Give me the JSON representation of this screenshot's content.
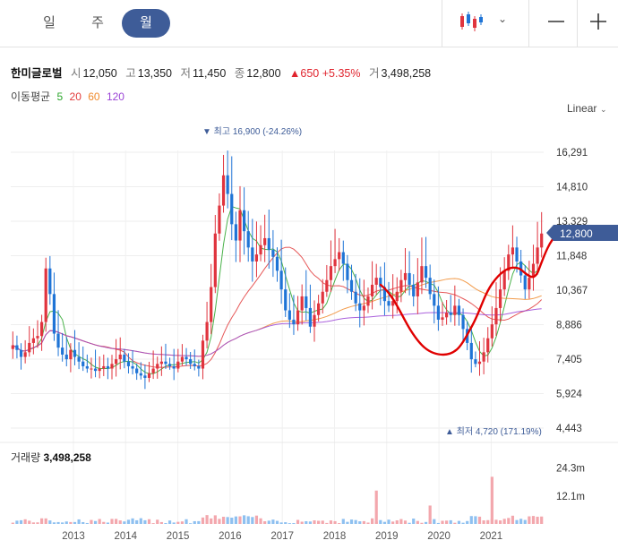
{
  "tabs": [
    {
      "label": "일",
      "active": false
    },
    {
      "label": "주",
      "active": false
    },
    {
      "label": "월",
      "active": true
    }
  ],
  "quote": {
    "name": "한미글로벌",
    "open_label": "시",
    "open": "12,050",
    "high_label": "고",
    "high": "13,350",
    "low_label": "저",
    "low": "11,450",
    "close_label": "종",
    "close": "12,800",
    "change": "▲650",
    "change_pct": "+5.35%",
    "volume_label": "거",
    "volume": "3,498,258"
  },
  "moving_avg": {
    "label": "이동평균",
    "periods": [
      {
        "label": "5",
        "color": "#2aa52a"
      },
      {
        "label": "20",
        "color": "#e23b3b"
      },
      {
        "label": "60",
        "color": "#f08a2c"
      },
      {
        "label": "120",
        "color": "#9b45d6"
      }
    ]
  },
  "scale_label": "Linear",
  "annotations": {
    "max_label": "▼ 최고 16,900 (-24.26%)",
    "min_label": "▲ 최저 4,720 (171.19%)"
  },
  "current_price_tag": "12,800",
  "volume_panel": {
    "label": "거래량",
    "value": "3,498,258"
  },
  "colors": {
    "up": "#e0343e",
    "down": "#1f74d6",
    "accent": "#3e5c98",
    "trend": "#e00000"
  },
  "chart_data": {
    "type": "candlestick",
    "y_ticks": [
      "16,291",
      "14,810",
      "13,329",
      "11,848",
      "10,367",
      "8,886",
      "7,405",
      "5,924",
      "4,443"
    ],
    "ylim": [
      4443,
      16291
    ],
    "x_ticks": [
      "2013",
      "2014",
      "2015",
      "2016",
      "2017",
      "2018",
      "2019",
      "2020",
      "2021"
    ],
    "volume_ticks": [
      "24.3m",
      "12.1m"
    ],
    "volume_max": 24.3,
    "price_path": [
      8000,
      7800,
      7500,
      7700,
      8100,
      8300,
      8400,
      9000,
      11300,
      10200,
      8500,
      7900,
      7600,
      7400,
      7800,
      7500,
      7300,
      7100,
      7000,
      7000,
      6900,
      7000,
      7100,
      7000,
      7200,
      7400,
      7600,
      7300,
      7100,
      7000,
      6800,
      6700,
      6600,
      6800,
      7000,
      7200,
      7300,
      7200,
      7100,
      7000,
      7300,
      7500,
      7400,
      7200,
      7100,
      7000,
      8200,
      9000,
      10500,
      12800,
      14000,
      15300,
      14500,
      13200,
      12500,
      13800,
      12900,
      12200,
      11600,
      11900,
      12300,
      12600,
      12100,
      11800,
      11200,
      10400,
      9500,
      9100,
      8900,
      9500,
      10100,
      9600,
      8800,
      9300,
      9800,
      10300,
      10800,
      11400,
      11700,
      12000,
      11500,
      10800,
      10300,
      9800,
      9500,
      9700,
      10100,
      10600,
      10900,
      10500,
      9900,
      9700,
      9900,
      10300,
      10800,
      11100,
      10600,
      10100,
      10700,
      11400,
      10900,
      10200,
      9700,
      9100,
      9200,
      9400,
      9300,
      9700,
      9300,
      8700,
      8100,
      7400,
      7200,
      7300,
      7700,
      8300,
      8900,
      9600,
      10400,
      11200,
      11900,
      12200,
      11600,
      11000,
      10400,
      10900,
      11500,
      12200,
      12800
    ]
  }
}
